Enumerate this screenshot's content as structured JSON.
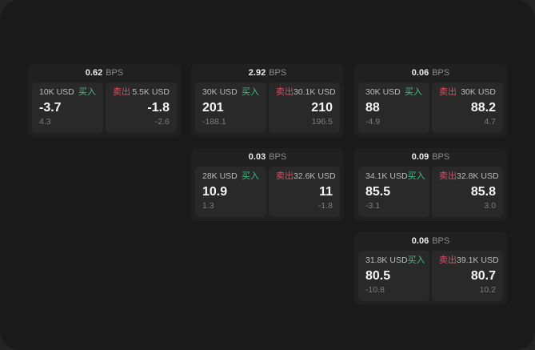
{
  "labels": {
    "bps_unit": "BPS",
    "buy": "买入",
    "sell": "卖出"
  },
  "colors": {
    "buy": "#40bd80",
    "sell": "#da4f66",
    "backdrop": "#242424",
    "window_bg": "#1a1a1a",
    "card_bg": "#202020",
    "panel_bg": "#292929"
  },
  "cards": [
    {
      "bps": "0.62",
      "row": 1,
      "col": 1,
      "buy": {
        "size": "10K USD",
        "value": "-3.7",
        "delta": "4.3"
      },
      "sell": {
        "size": "5.5K USD",
        "value": "-1.8",
        "delta": "-2.6"
      }
    },
    {
      "bps": "2.92",
      "row": 1,
      "col": 2,
      "buy": {
        "size": "30K USD",
        "value": "201",
        "delta": "-188.1"
      },
      "sell": {
        "size": "30.1K USD",
        "value": "210",
        "delta": "196.5"
      }
    },
    {
      "bps": "0.06",
      "row": 1,
      "col": 3,
      "buy": {
        "size": "30K USD",
        "value": "88",
        "delta": "-4.9"
      },
      "sell": {
        "size": "30K USD",
        "value": "88.2",
        "delta": "4.7"
      }
    },
    {
      "bps": "0.03",
      "row": 2,
      "col": 2,
      "buy": {
        "size": "28K USD",
        "value": "10.9",
        "delta": "1.3"
      },
      "sell": {
        "size": "32.6K USD",
        "value": "11",
        "delta": "-1.8"
      }
    },
    {
      "bps": "0.09",
      "row": 2,
      "col": 3,
      "buy": {
        "size": "34.1K USD",
        "value": "85.5",
        "delta": "-3.1"
      },
      "sell": {
        "size": "32.8K USD",
        "value": "85.8",
        "delta": "3.0"
      }
    },
    {
      "bps": "0.06",
      "row": 3,
      "col": 3,
      "buy": {
        "size": "31.8K USD",
        "value": "80.5",
        "delta": "-10.8"
      },
      "sell": {
        "size": "39.1K USD",
        "value": "80.7",
        "delta": "10.2"
      }
    }
  ]
}
